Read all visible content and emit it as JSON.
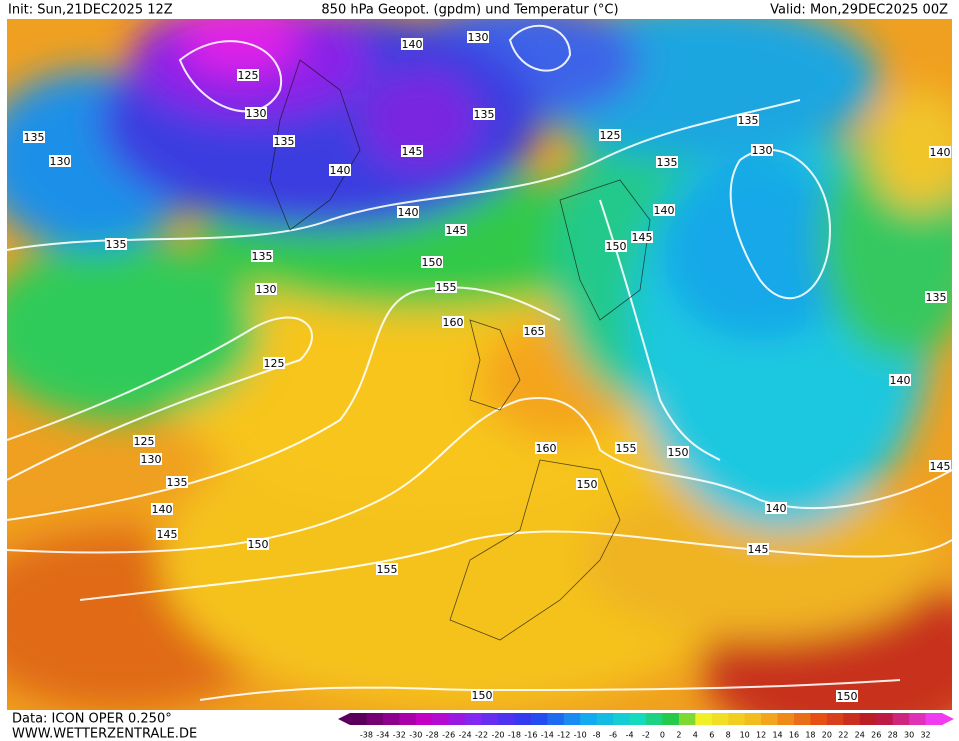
{
  "header": {
    "init": "Init: Sun,21DEC2025 12Z",
    "title": "850 hPa Geopot. (gpdm) und Temperatur (°C)",
    "valid": "Valid: Mon,29DEC2025 00Z"
  },
  "contour_labels": [
    "140",
    "130",
    "125",
    "130",
    "135",
    "135",
    "145",
    "140",
    "140",
    "145",
    "150",
    "155",
    "160",
    "165",
    "135",
    "130",
    "135",
    "135",
    "130",
    "125",
    "125",
    "130",
    "135",
    "140",
    "145",
    "150",
    "155",
    "160",
    "155",
    "150",
    "150",
    "140",
    "145",
    "150",
    "150",
    "125",
    "135",
    "140",
    "150",
    "145",
    "135",
    "130",
    "140",
    "135",
    "140",
    "145"
  ],
  "footer": {
    "data": "Data: ICON OPER 0.250°",
    "site": "WWW.WETTERZENTRALE.DE"
  },
  "colorbar": {
    "labels": [
      "-38",
      "-34",
      "-32",
      "-30",
      "-28",
      "-26",
      "-24",
      "-22",
      "-20",
      "-18",
      "-16",
      "-14",
      "-12",
      "-10",
      "-8",
      "-6",
      "-4",
      "-2",
      "0",
      "2",
      "4",
      "6",
      "8",
      "10",
      "12",
      "14",
      "16",
      "18",
      "20",
      "22",
      "24",
      "26",
      "28",
      "30",
      "32"
    ]
  }
}
